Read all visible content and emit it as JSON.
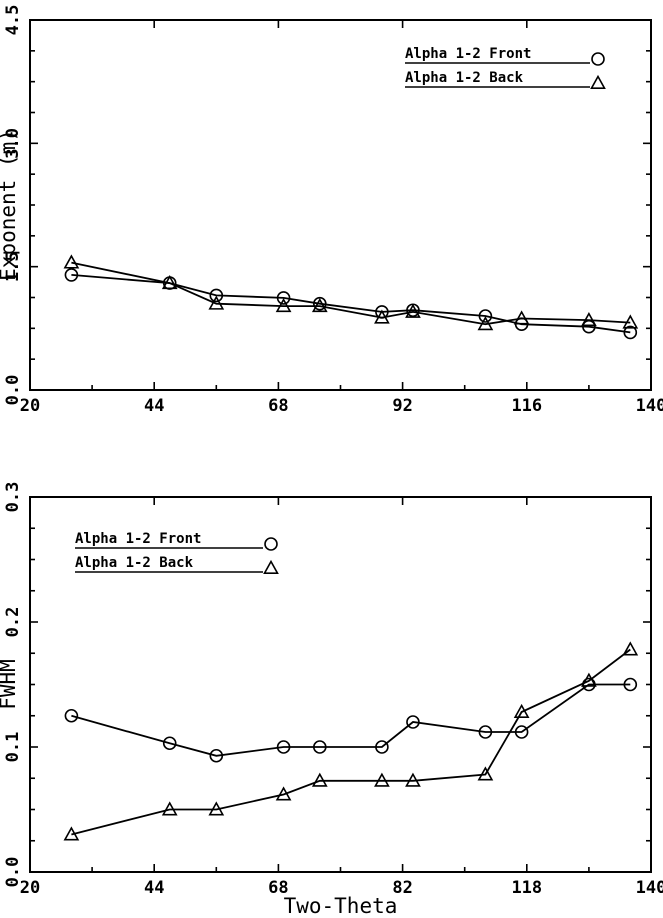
{
  "chart_data": [
    {
      "type": "line",
      "title": "",
      "xlabel": "",
      "ylabel": "Exponent  (m)",
      "xlim": [
        20,
        140
      ],
      "ylim": [
        0.0,
        4.5
      ],
      "x_ticks": [
        "20",
        "44",
        "68",
        "92",
        "116",
        "140"
      ],
      "y_ticks": [
        "0.0",
        "1.5",
        "3.0",
        "4.5"
      ],
      "legend_position": "top-right",
      "series": [
        {
          "name": "Alpha 1-2 Front",
          "marker": "circle",
          "x": [
            28,
            47,
            56,
            69,
            76,
            88,
            94,
            108,
            115,
            128,
            136
          ],
          "y": [
            1.4,
            1.3,
            1.15,
            1.12,
            1.05,
            0.95,
            0.97,
            0.9,
            0.8,
            0.77,
            0.7
          ]
        },
        {
          "name": "Alpha 1-2 Back",
          "marker": "triangle",
          "x": [
            28,
            47,
            56,
            69,
            76,
            88,
            94,
            108,
            115,
            128,
            136
          ],
          "y": [
            1.55,
            1.3,
            1.05,
            1.02,
            1.02,
            0.88,
            0.95,
            0.8,
            0.87,
            0.85,
            0.82
          ]
        }
      ]
    },
    {
      "type": "line",
      "title": "",
      "xlabel": "Two-Theta",
      "ylabel": "FWHM",
      "xlim": [
        20,
        140
      ],
      "ylim": [
        0.0,
        0.3
      ],
      "x_ticks": [
        "20",
        "44",
        "68",
        "82",
        "118",
        "140"
      ],
      "y_ticks": [
        "0.0",
        "0.1",
        "0.2",
        "0.3"
      ],
      "legend_position": "top-left",
      "series": [
        {
          "name": "Alpha 1-2 Front",
          "marker": "circle",
          "x": [
            28,
            47,
            56,
            69,
            76,
            88,
            94,
            108,
            115,
            128,
            136
          ],
          "y": [
            0.125,
            0.103,
            0.093,
            0.1,
            0.1,
            0.1,
            0.12,
            0.112,
            0.112,
            0.15,
            0.15
          ]
        },
        {
          "name": "Alpha 1-2 Back",
          "marker": "triangle",
          "x": [
            28,
            47,
            56,
            69,
            76,
            88,
            94,
            108,
            115,
            128,
            136
          ],
          "y": [
            0.03,
            0.05,
            0.05,
            0.062,
            0.073,
            0.073,
            0.073,
            0.078,
            0.128,
            0.153,
            0.178
          ]
        }
      ]
    }
  ]
}
